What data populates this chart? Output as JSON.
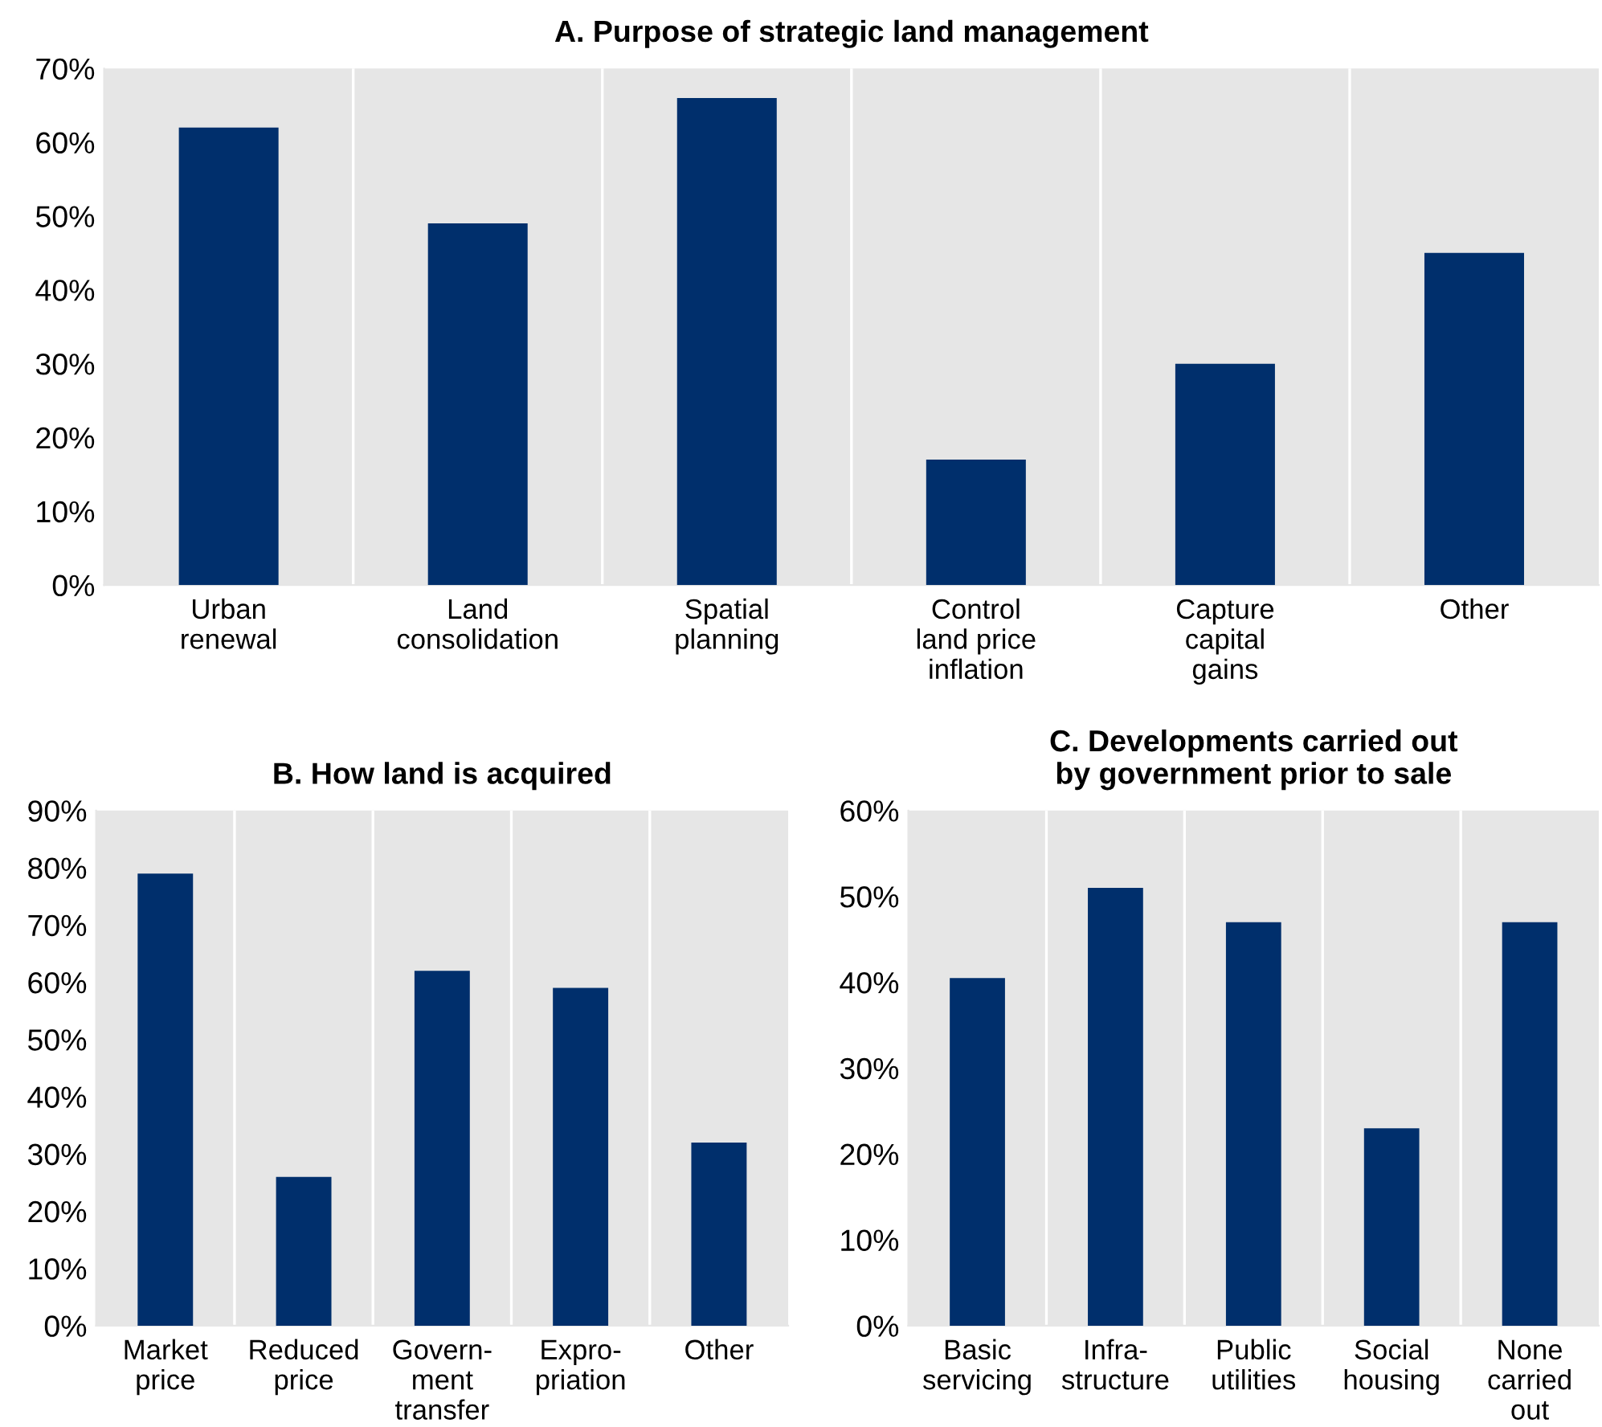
{
  "chart_data": [
    {
      "type": "bar",
      "title": "A. Purpose of strategic land management",
      "categories": [
        "Urban\nrenewal",
        "Land\nconsolidation",
        "Spatial\nplanning",
        "Control\nland price\ninflation",
        "Capture\ncapital\ngains",
        "Other"
      ],
      "values": [
        62,
        49,
        66,
        17,
        30,
        45
      ],
      "color": "#002f6c",
      "ylim": [
        0,
        70
      ],
      "yticks": [
        {
          "value": 0,
          "label": "0%"
        },
        {
          "value": 10,
          "label": "10%"
        },
        {
          "value": 20,
          "label": "20%"
        },
        {
          "value": 30,
          "label": "30%"
        },
        {
          "value": 40,
          "label": "40%"
        },
        {
          "value": 50,
          "label": "50%"
        },
        {
          "value": 60,
          "label": "60%"
        },
        {
          "value": 70,
          "label": "70%"
        }
      ],
      "grid": "x"
    },
    {
      "type": "bar",
      "title": "B. How land is acquired",
      "categories": [
        "Market\nprice",
        "Reduced\nprice",
        "Govern-\nment\ntransfer",
        "Expro-\npriation",
        "Other"
      ],
      "values": [
        79,
        26,
        62,
        59,
        32
      ],
      "color": "#002f6c",
      "ylim": [
        0,
        90
      ],
      "yticks": [
        {
          "value": 0,
          "label": "0%"
        },
        {
          "value": 10,
          "label": "10%"
        },
        {
          "value": 20,
          "label": "20%"
        },
        {
          "value": 30,
          "label": "30%"
        },
        {
          "value": 40,
          "label": "40%"
        },
        {
          "value": 50,
          "label": "50%"
        },
        {
          "value": 60,
          "label": "60%"
        },
        {
          "value": 70,
          "label": "70%"
        },
        {
          "value": 80,
          "label": "80%"
        },
        {
          "value": 90,
          "label": "90%"
        }
      ],
      "grid": "x"
    },
    {
      "type": "bar",
      "title": "C. Developments carried out\nby government prior to sale",
      "categories": [
        "Basic\nservicing",
        "Infra-\nstructure",
        "Public\nutilities",
        "Social\nhousing",
        "None\ncarried\nout"
      ],
      "values": [
        40.5,
        51,
        47,
        23,
        47
      ],
      "color": "#002f6c",
      "ylim": [
        0,
        60
      ],
      "yticks": [
        {
          "value": 0,
          "label": "0%"
        },
        {
          "value": 10,
          "label": "10%"
        },
        {
          "value": 20,
          "label": "20%"
        },
        {
          "value": 30,
          "label": "30%"
        },
        {
          "value": 40,
          "label": "40%"
        },
        {
          "value": 50,
          "label": "50%"
        },
        {
          "value": 60,
          "label": "60%"
        }
      ],
      "grid": "x"
    }
  ]
}
